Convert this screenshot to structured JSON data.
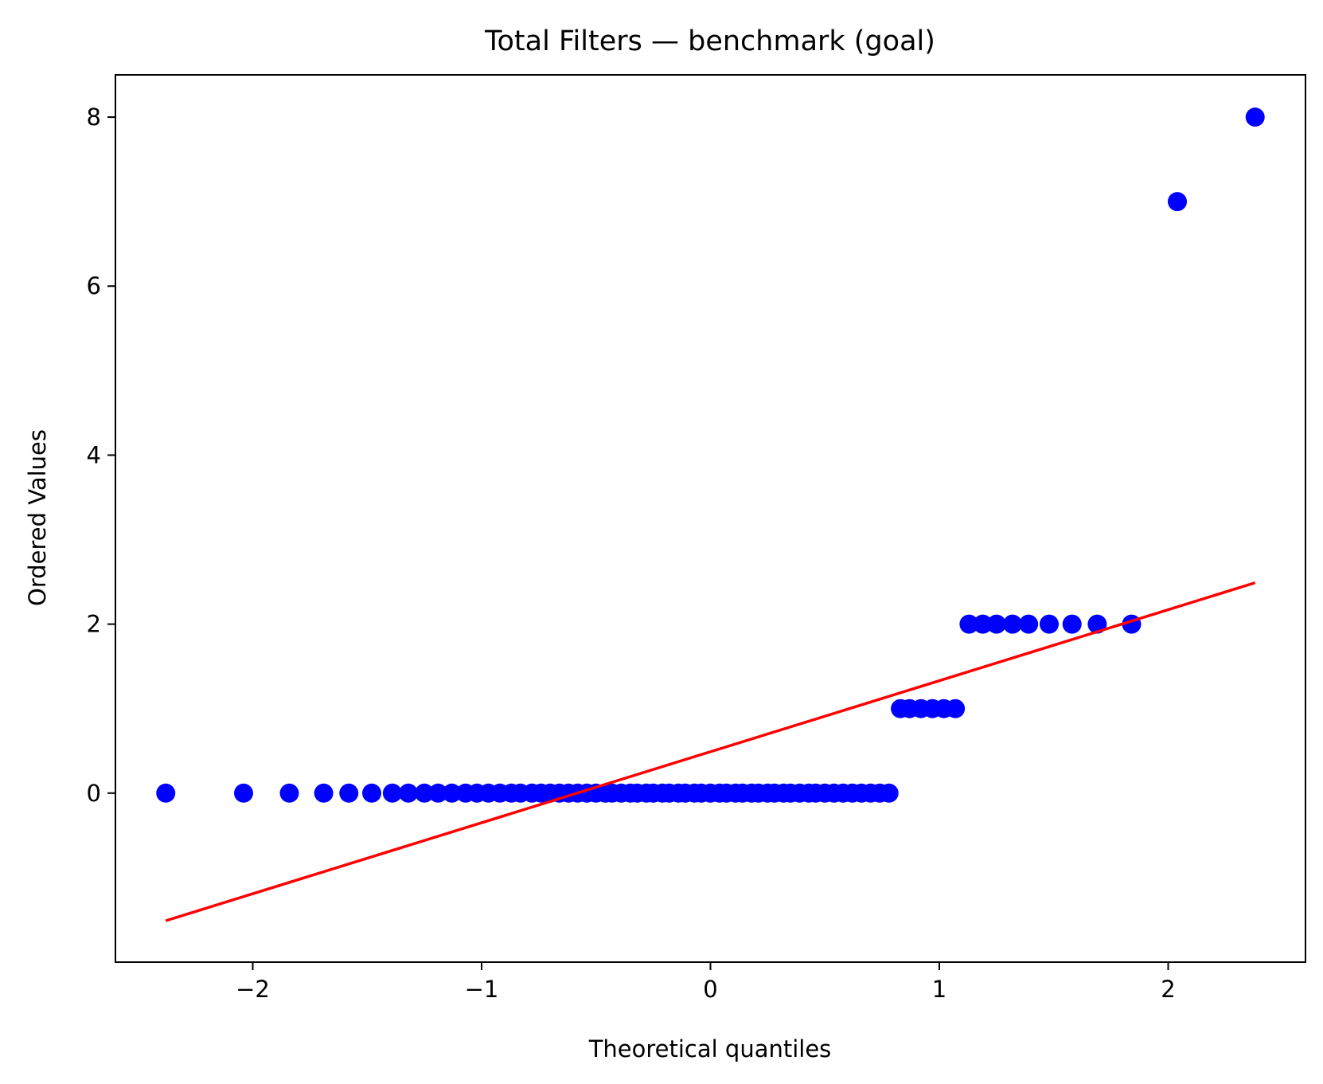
{
  "chart_data": {
    "type": "scatter",
    "title": "Total Filters — benchmark (goal)",
    "xlabel": "Theoretical quantiles",
    "ylabel": "Ordered Values",
    "xlim": [
      -2.6,
      2.6
    ],
    "ylim": [
      -2.0,
      8.5
    ],
    "x_ticks": [
      -2,
      -1,
      0,
      1,
      2
    ],
    "x_tick_labels": [
      "−2",
      "−1",
      "0",
      "1",
      "2"
    ],
    "y_ticks": [
      0,
      2,
      4,
      6,
      8
    ],
    "y_tick_labels": [
      "0",
      "2",
      "4",
      "6",
      "8"
    ],
    "grid": false,
    "marker_color": "#0000ff",
    "line_color": "#ff0000",
    "series": [
      {
        "values": {
          "x": [
            -2.38,
            -2.04,
            -1.84,
            -1.69,
            -1.58,
            -1.48,
            -1.39,
            -1.32,
            -1.25,
            -1.19,
            -1.13,
            -1.07,
            -1.02,
            -0.97,
            -0.92,
            -0.87,
            -0.83,
            -0.78,
            -0.74,
            -0.7,
            -0.66,
            -0.62,
            -0.58,
            -0.54,
            -0.5,
            -0.46,
            -0.43,
            -0.39,
            -0.35,
            -0.32,
            -0.28,
            -0.25,
            -0.21,
            -0.18,
            -0.14,
            -0.11,
            -0.07,
            -0.04,
            0.0,
            0.04,
            0.07,
            0.11,
            0.14,
            0.18,
            0.21,
            0.25,
            0.28,
            0.32,
            0.35,
            0.39,
            0.43,
            0.46,
            0.5,
            0.54,
            0.58,
            0.62,
            0.66,
            0.7,
            0.74,
            0.78,
            0.83,
            0.87,
            0.92,
            0.97,
            1.02,
            1.07,
            1.13,
            1.19,
            1.25,
            1.32,
            1.39,
            1.48,
            1.58,
            1.69,
            1.84,
            2.04,
            2.38
          ],
          "y": [
            0,
            0,
            0,
            0,
            0,
            0,
            0,
            0,
            0,
            0,
            0,
            0,
            0,
            0,
            0,
            0,
            0,
            0,
            0,
            0,
            0,
            0,
            0,
            0,
            0,
            0,
            0,
            0,
            0,
            0,
            0,
            0,
            0,
            0,
            0,
            0,
            0,
            0,
            0,
            0,
            0,
            0,
            0,
            0,
            0,
            0,
            0,
            0,
            0,
            0,
            0,
            0,
            0,
            0,
            0,
            0,
            0,
            0,
            0,
            0,
            1,
            1,
            1,
            1,
            1,
            1,
            2,
            2,
            2,
            2,
            2,
            2,
            2,
            2,
            2,
            7,
            8
          ]
        }
      },
      {
        "type": "line",
        "values": {
          "x": [
            -2.38,
            2.38
          ],
          "y": [
            -1.51,
            2.49
          ]
        }
      }
    ]
  }
}
